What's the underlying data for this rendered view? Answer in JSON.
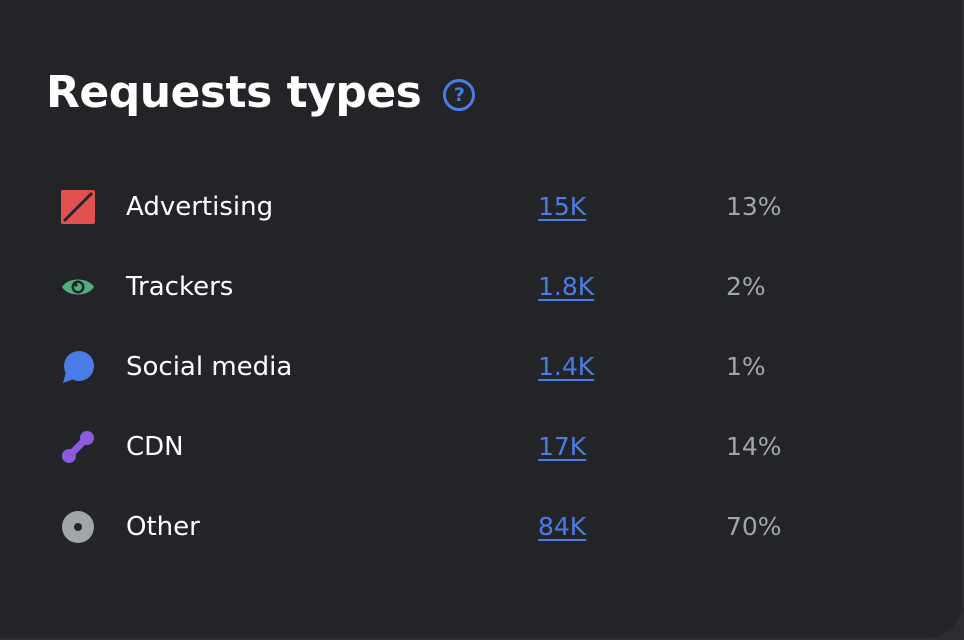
{
  "card": {
    "title": "Requests types",
    "help_symbol": "?"
  },
  "rows": [
    {
      "label": "Advertising",
      "count": "15K",
      "percent": "13%",
      "icon": "advertising-icon",
      "color": "#e0514f"
    },
    {
      "label": "Trackers",
      "count": "1.8K",
      "percent": "2%",
      "icon": "eye-icon",
      "color": "#4fb07c"
    },
    {
      "label": "Social media",
      "count": "1.4K",
      "percent": "1%",
      "icon": "chat-bubble-icon",
      "color": "#4a7ce8"
    },
    {
      "label": "CDN",
      "count": "17K",
      "percent": "14%",
      "icon": "cdn-link-icon",
      "color": "#8a5be0"
    },
    {
      "label": "Other",
      "count": "84K",
      "percent": "70%",
      "icon": "other-dot-icon",
      "color": "#a2a5aa"
    }
  ],
  "colors": {
    "background": "#232427",
    "accent": "#4a7ce8",
    "text": "#ffffff",
    "muted": "#a2a5aa"
  }
}
